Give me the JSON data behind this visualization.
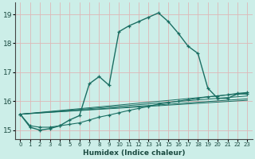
{
  "xlabel": "Humidex (Indice chaleur)",
  "bg_color": "#cceee8",
  "grid_color": "#ddb8b8",
  "line_color": "#1a6e62",
  "xlim": [
    -0.5,
    23.5
  ],
  "ylim": [
    14.7,
    19.4
  ],
  "yticks": [
    15,
    16,
    17,
    18,
    19
  ],
  "xticks": [
    0,
    1,
    2,
    3,
    4,
    5,
    6,
    7,
    8,
    9,
    10,
    11,
    12,
    13,
    14,
    15,
    16,
    17,
    18,
    19,
    20,
    21,
    22,
    23
  ],
  "curve_main": [
    [
      0,
      15.55
    ],
    [
      1,
      15.1
    ],
    [
      2,
      15.0
    ],
    [
      3,
      15.05
    ],
    [
      4,
      15.15
    ],
    [
      5,
      15.35
    ],
    [
      6,
      15.5
    ],
    [
      7,
      16.6
    ],
    [
      8,
      16.85
    ],
    [
      9,
      16.55
    ],
    [
      10,
      18.4
    ],
    [
      11,
      18.6
    ],
    [
      12,
      18.75
    ],
    [
      13,
      18.9
    ],
    [
      14,
      19.05
    ],
    [
      15,
      18.75
    ],
    [
      16,
      18.35
    ],
    [
      17,
      17.9
    ],
    [
      18,
      17.65
    ],
    [
      19,
      16.45
    ],
    [
      20,
      16.1
    ],
    [
      21,
      16.1
    ],
    [
      22,
      16.25
    ],
    [
      23,
      16.25
    ]
  ],
  "curve_regression": [
    [
      0,
      15.55
    ],
    [
      1,
      15.15
    ],
    [
      2,
      15.1
    ],
    [
      3,
      15.1
    ],
    [
      4,
      15.15
    ],
    [
      5,
      15.2
    ],
    [
      6,
      15.25
    ],
    [
      7,
      15.35
    ],
    [
      8,
      15.45
    ],
    [
      9,
      15.52
    ],
    [
      10,
      15.6
    ],
    [
      11,
      15.68
    ],
    [
      12,
      15.75
    ],
    [
      13,
      15.82
    ],
    [
      14,
      15.9
    ],
    [
      15,
      15.95
    ],
    [
      16,
      16.0
    ],
    [
      17,
      16.05
    ],
    [
      18,
      16.1
    ],
    [
      19,
      16.15
    ],
    [
      20,
      16.18
    ],
    [
      21,
      16.22
    ],
    [
      22,
      16.27
    ],
    [
      23,
      16.3
    ]
  ],
  "line_straight1": [
    [
      0,
      15.55
    ],
    [
      23,
      16.28
    ]
  ],
  "line_straight2": [
    [
      0,
      15.55
    ],
    [
      23,
      16.18
    ]
  ],
  "line_straight3": [
    [
      0,
      15.55
    ],
    [
      23,
      16.08
    ]
  ],
  "line_straight4": [
    [
      0,
      15.55
    ],
    [
      23,
      16.03
    ]
  ]
}
